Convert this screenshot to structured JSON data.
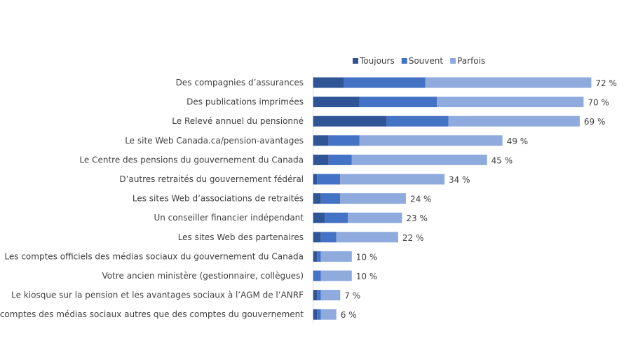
{
  "chart_data": {
    "type": "bar",
    "orientation": "horizontal",
    "stacked": true,
    "title": "",
    "xlabel": "",
    "ylabel": "",
    "xlim": [
      0,
      72
    ],
    "grid": false,
    "legend_position": "top",
    "value_suffix": " %",
    "categories": [
      "Des compagnies d’assurances",
      "Des publications imprimées",
      "Le Relevé annuel du pensionné",
      "Le site Web Canada.ca/pension-avantages",
      "Le Centre des pensions du gouvernement du Canada",
      "D’autres retraités du gouvernement fédéral",
      "Les sites Web d’associations de retraités",
      "Un conseiller financier indépendant",
      "Les sites Web des partenaires",
      "Les comptes officiels  des médias sociaux du gouvernement du Canada",
      "Votre ancien ministère (gestionnaire, collègues)",
      "Le kiosque sur la pension et les avantages sociaux à l’AGM de l’ANRF",
      "Les comptes des médias sociaux autres que des comptes du gouvernement"
    ],
    "series": [
      {
        "name": "Toujours",
        "color": "#2F5597",
        "values": [
          8,
          12,
          19,
          4,
          4,
          1,
          2,
          3,
          2,
          1,
          0,
          1,
          1
        ]
      },
      {
        "name": "Souvent",
        "color": "#4472C4",
        "values": [
          21,
          20,
          16,
          8,
          6,
          6,
          5,
          6,
          4,
          1,
          2,
          1,
          1
        ]
      },
      {
        "name": "Parfois",
        "color": "#8FAADC",
        "values": [
          43,
          38,
          34,
          37,
          35,
          27,
          17,
          14,
          16,
          8,
          8,
          5,
          4
        ]
      }
    ],
    "totals": [
      72,
      70,
      69,
      49,
      45,
      34,
      24,
      23,
      22,
      10,
      10,
      7,
      6
    ],
    "total_labels": [
      "72 %",
      "70 %",
      "69 %",
      "49 %",
      "45 %",
      "34 %",
      "24 %",
      "23 %",
      "22 %",
      "10 %",
      "10 %",
      "7 %",
      "6 %"
    ]
  }
}
